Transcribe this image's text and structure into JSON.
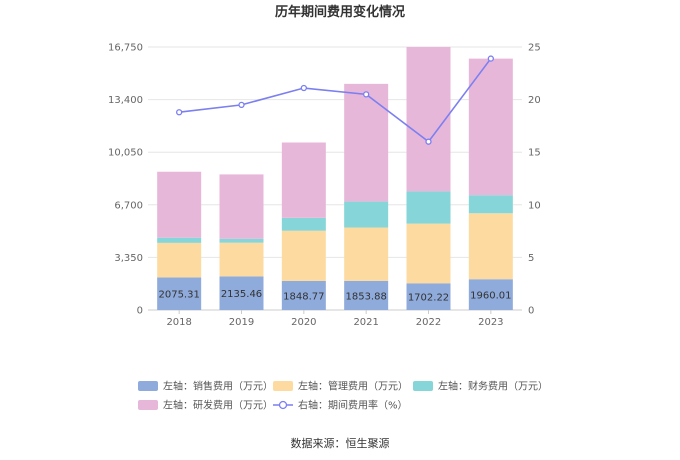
{
  "chart_data": {
    "type": "bar",
    "title": "历年期间费用变化情况",
    "categories": [
      "2018",
      "2019",
      "2020",
      "2021",
      "2022",
      "2023"
    ],
    "left_axis": {
      "min": 0,
      "max": 16750,
      "ticks": [
        "0",
        "3,350",
        "6,700",
        "10,050",
        "13,400",
        "16,750"
      ]
    },
    "right_axis": {
      "min": 0,
      "max": 25,
      "ticks": [
        "0",
        "5",
        "10",
        "15",
        "20",
        "25"
      ]
    },
    "series": [
      {
        "name": "左轴：销售费用（万元）",
        "type": "bar",
        "color": "#8fabdb",
        "values": [
          2075.31,
          2135.46,
          1848.77,
          1853.88,
          1702.22,
          1960.01
        ],
        "labels": [
          "2075.31",
          "2135.46",
          "1848.77",
          "1853.88",
          "1702.22",
          "1960.01"
        ]
      },
      {
        "name": "左轴：管理费用（万元）",
        "type": "bar",
        "color": "#fddba0",
        "values": [
          2200,
          2150,
          3200,
          3400,
          3800,
          4200
        ]
      },
      {
        "name": "左轴：财务费用（万元）",
        "type": "bar",
        "color": "#86d5d8",
        "values": [
          330,
          250,
          820,
          1650,
          2050,
          1150
        ]
      },
      {
        "name": "左轴：研发费用（万元）",
        "type": "bar",
        "color": "#e7b7da",
        "values": [
          4200,
          4100,
          4800,
          7500,
          9200,
          8700
        ]
      },
      {
        "name": "右轴：期间费用率（%）",
        "type": "line",
        "color": "#7b7ff0",
        "values": [
          18.8,
          19.5,
          21.1,
          20.5,
          16.0,
          23.9
        ]
      }
    ],
    "source": "数据来源：恒生聚源"
  }
}
